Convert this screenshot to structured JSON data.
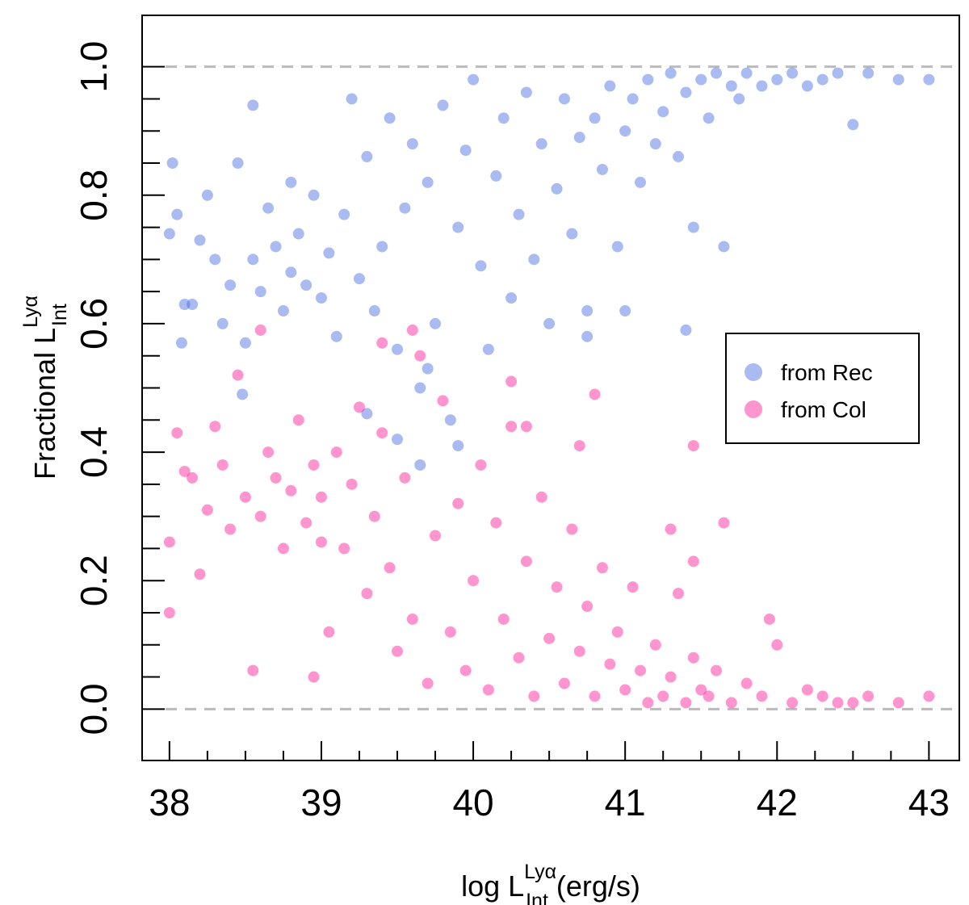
{
  "chart_data": {
    "type": "scatter",
    "title": "",
    "xlabel": {
      "prefix": "log L",
      "superscript": "Lyα",
      "subscript": "Int",
      "suffix": " (erg/s)"
    },
    "ylabel": {
      "prefix": "Fractional  L",
      "superscript": "Lyα",
      "subscript": "Int"
    },
    "xlim": [
      37.82,
      43.2
    ],
    "ylim": [
      -0.08,
      1.08
    ],
    "x_ticks": [
      38,
      39,
      40,
      41,
      42,
      43
    ],
    "x_tick_labels": [
      "38",
      "39",
      "40",
      "41",
      "42",
      "43"
    ],
    "x_minor_step": 0.25,
    "y_ticks": [
      0.0,
      0.2,
      0.4,
      0.6,
      0.8,
      1.0
    ],
    "y_tick_labels": [
      "0.0",
      "0.2",
      "0.4",
      "0.6",
      "0.8",
      "1.0"
    ],
    "y_minor_step": 0.05,
    "reference_lines": [
      0.0,
      1.0
    ],
    "reference_line_color": "#bbbbbb",
    "legend": {
      "placement": "right-middle",
      "entries": [
        {
          "label": "from Rec",
          "color": "#4169E1"
        },
        {
          "label": "from Col",
          "color": "#FF1493"
        }
      ]
    },
    "series": [
      {
        "name": "from Rec",
        "color": "#4169E1",
        "opacity": 0.45,
        "points": [
          [
            38.0,
            0.74
          ],
          [
            38.02,
            0.85
          ],
          [
            38.05,
            0.77
          ],
          [
            38.08,
            0.57
          ],
          [
            38.1,
            0.63
          ],
          [
            38.15,
            0.63
          ],
          [
            38.2,
            0.73
          ],
          [
            38.25,
            0.8
          ],
          [
            38.3,
            0.7
          ],
          [
            38.35,
            0.6
          ],
          [
            38.4,
            0.66
          ],
          [
            38.45,
            0.85
          ],
          [
            38.5,
            0.57
          ],
          [
            38.55,
            0.7
          ],
          [
            38.6,
            0.65
          ],
          [
            38.65,
            0.78
          ],
          [
            38.7,
            0.72
          ],
          [
            38.75,
            0.62
          ],
          [
            38.8,
            0.68
          ],
          [
            38.85,
            0.74
          ],
          [
            38.9,
            0.66
          ],
          [
            38.95,
            0.8
          ],
          [
            39.0,
            0.64
          ],
          [
            39.05,
            0.71
          ],
          [
            39.1,
            0.58
          ],
          [
            39.15,
            0.77
          ],
          [
            39.2,
            0.95
          ],
          [
            39.25,
            0.67
          ],
          [
            39.3,
            0.86
          ],
          [
            39.35,
            0.62
          ],
          [
            39.4,
            0.72
          ],
          [
            39.45,
            0.92
          ],
          [
            39.5,
            0.56
          ],
          [
            39.55,
            0.78
          ],
          [
            39.6,
            0.88
          ],
          [
            39.65,
            0.5
          ],
          [
            39.7,
            0.82
          ],
          [
            39.75,
            0.6
          ],
          [
            39.8,
            0.94
          ],
          [
            39.85,
            0.45
          ],
          [
            39.9,
            0.75
          ],
          [
            39.95,
            0.87
          ],
          [
            40.0,
            0.98
          ],
          [
            40.05,
            0.69
          ],
          [
            40.1,
            0.56
          ],
          [
            40.15,
            0.83
          ],
          [
            40.2,
            0.92
          ],
          [
            40.25,
            0.64
          ],
          [
            40.3,
            0.77
          ],
          [
            40.35,
            0.96
          ],
          [
            40.4,
            0.7
          ],
          [
            40.45,
            0.88
          ],
          [
            40.5,
            0.6
          ],
          [
            40.55,
            0.81
          ],
          [
            40.6,
            0.95
          ],
          [
            40.65,
            0.74
          ],
          [
            40.7,
            0.89
          ],
          [
            40.75,
            0.62
          ],
          [
            40.8,
            0.92
          ],
          [
            40.85,
            0.84
          ],
          [
            40.9,
            0.97
          ],
          [
            40.95,
            0.72
          ],
          [
            41.0,
            0.9
          ],
          [
            41.05,
            0.95
          ],
          [
            41.1,
            0.82
          ],
          [
            41.15,
            0.98
          ],
          [
            41.2,
            0.88
          ],
          [
            41.25,
            0.93
          ],
          [
            41.3,
            0.99
          ],
          [
            41.35,
            0.86
          ],
          [
            41.4,
            0.96
          ],
          [
            41.45,
            0.75
          ],
          [
            41.5,
            0.98
          ],
          [
            41.55,
            0.92
          ],
          [
            41.6,
            0.99
          ],
          [
            41.65,
            0.72
          ],
          [
            41.7,
            0.97
          ],
          [
            41.75,
            0.95
          ],
          [
            41.8,
            0.99
          ],
          [
            41.9,
            0.97
          ],
          [
            42.0,
            0.98
          ],
          [
            42.1,
            0.99
          ],
          [
            42.2,
            0.97
          ],
          [
            42.3,
            0.98
          ],
          [
            42.4,
            0.99
          ],
          [
            42.5,
            0.91
          ],
          [
            42.6,
            0.99
          ],
          [
            42.8,
            0.98
          ],
          [
            43.0,
            0.98
          ],
          [
            41.4,
            0.59
          ],
          [
            41.0,
            0.62
          ],
          [
            40.75,
            0.58
          ],
          [
            38.55,
            0.94
          ],
          [
            38.8,
            0.82
          ],
          [
            39.65,
            0.38
          ],
          [
            39.5,
            0.42
          ],
          [
            39.3,
            0.46
          ],
          [
            39.7,
            0.53
          ],
          [
            38.48,
            0.49
          ],
          [
            39.9,
            0.41
          ]
        ]
      },
      {
        "name": "from Col",
        "color": "#FF1493",
        "opacity": 0.45,
        "points": [
          [
            38.0,
            0.26
          ],
          [
            38.0,
            0.15
          ],
          [
            38.05,
            0.43
          ],
          [
            38.1,
            0.37
          ],
          [
            38.15,
            0.36
          ],
          [
            38.2,
            0.21
          ],
          [
            38.25,
            0.31
          ],
          [
            38.3,
            0.44
          ],
          [
            38.35,
            0.38
          ],
          [
            38.4,
            0.28
          ],
          [
            38.45,
            0.52
          ],
          [
            38.5,
            0.33
          ],
          [
            38.55,
            0.06
          ],
          [
            38.6,
            0.3
          ],
          [
            38.65,
            0.4
          ],
          [
            38.7,
            0.36
          ],
          [
            38.75,
            0.25
          ],
          [
            38.8,
            0.34
          ],
          [
            38.85,
            0.45
          ],
          [
            38.9,
            0.29
          ],
          [
            38.95,
            0.38
          ],
          [
            39.0,
            0.33
          ],
          [
            39.05,
            0.12
          ],
          [
            39.1,
            0.4
          ],
          [
            39.15,
            0.25
          ],
          [
            39.2,
            0.35
          ],
          [
            39.25,
            0.47
          ],
          [
            39.3,
            0.18
          ],
          [
            39.35,
            0.3
          ],
          [
            39.4,
            0.43
          ],
          [
            39.45,
            0.22
          ],
          [
            39.5,
            0.09
          ],
          [
            39.55,
            0.36
          ],
          [
            39.6,
            0.14
          ],
          [
            39.65,
            0.55
          ],
          [
            39.7,
            0.04
          ],
          [
            39.75,
            0.27
          ],
          [
            39.8,
            0.48
          ],
          [
            39.85,
            0.12
          ],
          [
            39.9,
            0.32
          ],
          [
            39.95,
            0.06
          ],
          [
            40.0,
            0.2
          ],
          [
            40.05,
            0.38
          ],
          [
            40.1,
            0.03
          ],
          [
            40.15,
            0.29
          ],
          [
            40.2,
            0.14
          ],
          [
            40.25,
            0.44
          ],
          [
            40.3,
            0.08
          ],
          [
            40.35,
            0.23
          ],
          [
            40.4,
            0.02
          ],
          [
            40.45,
            0.33
          ],
          [
            40.5,
            0.11
          ],
          [
            40.55,
            0.19
          ],
          [
            40.6,
            0.04
          ],
          [
            40.65,
            0.28
          ],
          [
            40.7,
            0.09
          ],
          [
            40.75,
            0.16
          ],
          [
            40.8,
            0.02
          ],
          [
            40.85,
            0.22
          ],
          [
            40.9,
            0.07
          ],
          [
            40.95,
            0.12
          ],
          [
            41.0,
            0.03
          ],
          [
            41.05,
            0.19
          ],
          [
            41.1,
            0.06
          ],
          [
            41.15,
            0.01
          ],
          [
            41.2,
            0.1
          ],
          [
            41.25,
            0.02
          ],
          [
            41.3,
            0.05
          ],
          [
            41.35,
            0.18
          ],
          [
            41.4,
            0.01
          ],
          [
            41.45,
            0.08
          ],
          [
            41.5,
            0.03
          ],
          [
            41.55,
            0.02
          ],
          [
            41.6,
            0.06
          ],
          [
            41.65,
            0.29
          ],
          [
            41.7,
            0.01
          ],
          [
            41.8,
            0.04
          ],
          [
            41.9,
            0.02
          ],
          [
            42.0,
            0.1
          ],
          [
            42.1,
            0.01
          ],
          [
            42.2,
            0.03
          ],
          [
            42.3,
            0.02
          ],
          [
            42.4,
            0.01
          ],
          [
            42.5,
            0.01
          ],
          [
            42.6,
            0.02
          ],
          [
            42.8,
            0.01
          ],
          [
            43.0,
            0.02
          ],
          [
            41.3,
            0.28
          ],
          [
            41.45,
            0.23
          ],
          [
            41.45,
            0.41
          ],
          [
            40.35,
            0.44
          ],
          [
            40.7,
            0.41
          ],
          [
            40.25,
            0.51
          ],
          [
            39.6,
            0.59
          ],
          [
            39.4,
            0.57
          ],
          [
            38.6,
            0.59
          ],
          [
            38.95,
            0.05
          ],
          [
            41.95,
            0.14
          ],
          [
            40.8,
            0.49
          ],
          [
            39.0,
            0.26
          ]
        ]
      }
    ]
  }
}
